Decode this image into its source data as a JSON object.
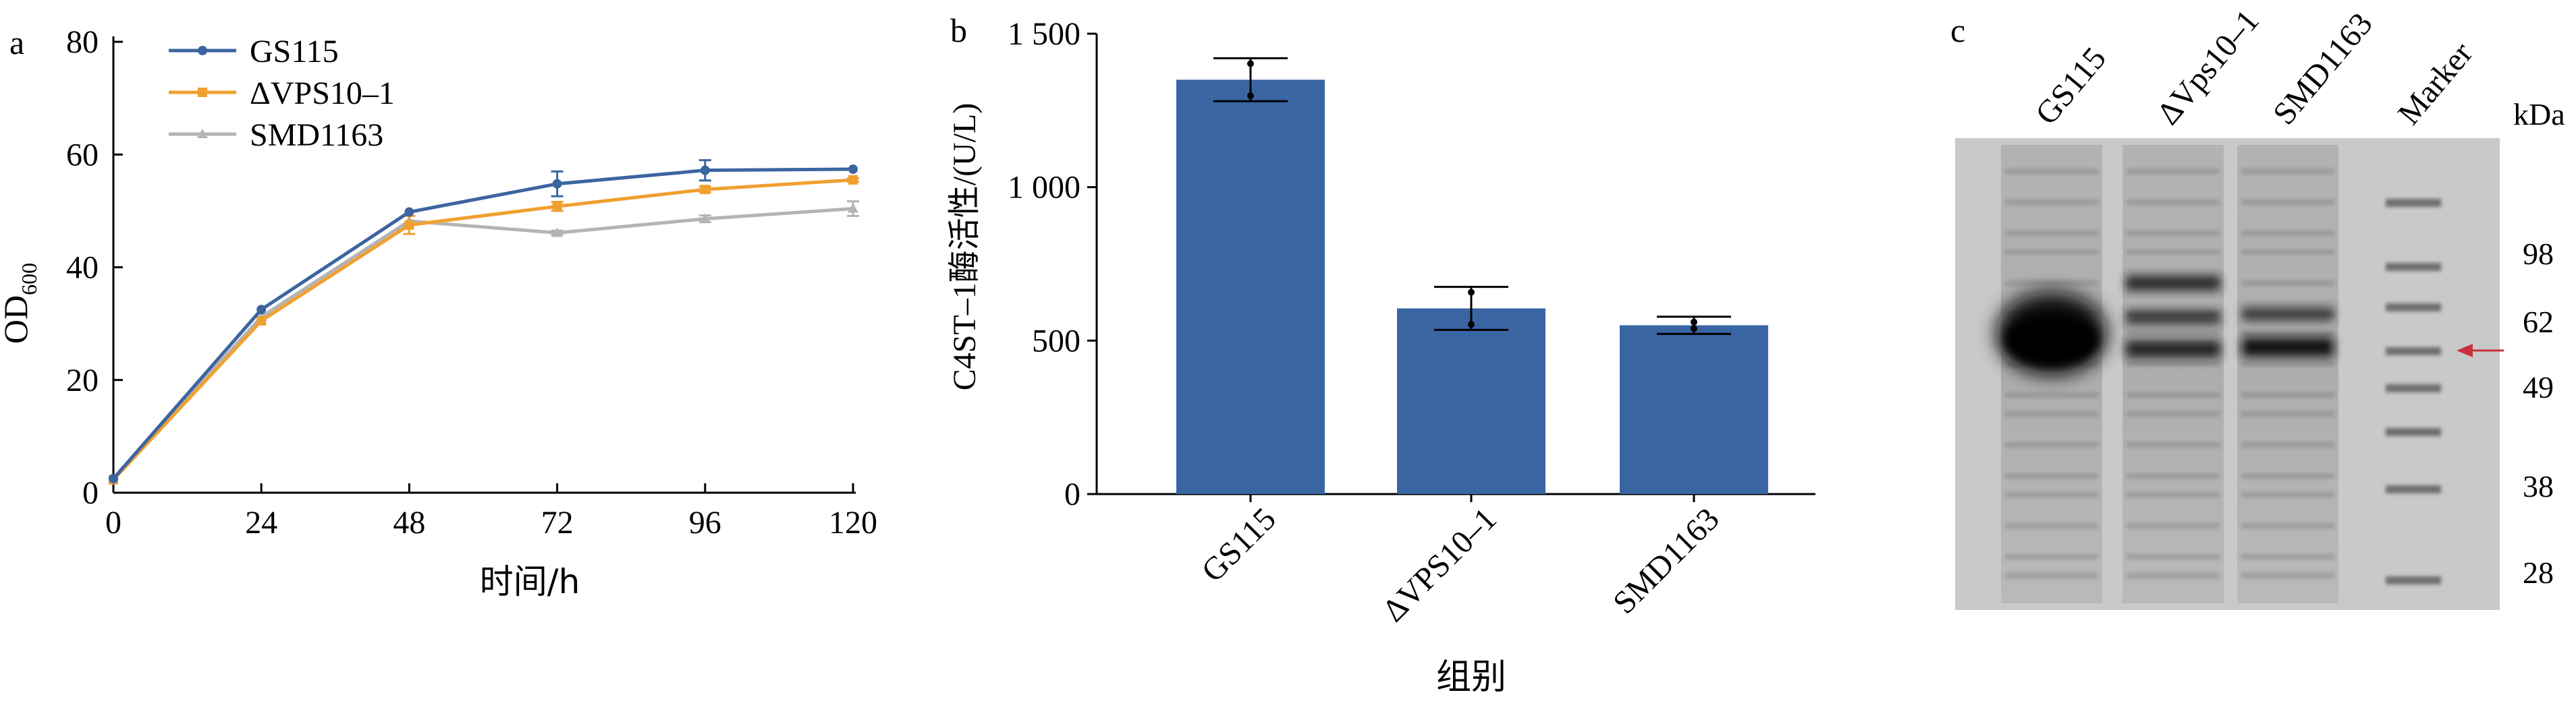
{
  "panel_a": {
    "letter": "a",
    "xlabel": "时间/h",
    "ylabel_main": "OD",
    "ylabel_sub": "600",
    "chart_data": {
      "type": "line",
      "x": [
        0,
        24,
        48,
        72,
        96,
        120
      ],
      "xlim": [
        0,
        120
      ],
      "ylim": [
        0,
        80
      ],
      "xticks": [
        "0",
        "24",
        "48",
        "72",
        "96",
        "120"
      ],
      "yticks": [
        "0",
        "20",
        "40",
        "60",
        "80"
      ],
      "series": [
        {
          "name": "GS115",
          "color": "#3c64a0",
          "marker": "circle",
          "values": [
            2.5,
            32.5,
            49.8,
            54.8,
            57.2,
            57.4
          ],
          "errors": [
            0,
            0,
            0,
            2.2,
            1.8,
            0
          ]
        },
        {
          "name": "ΔVPS10–1",
          "color": "#f0a030",
          "marker": "square",
          "values": [
            2.3,
            30.5,
            47.5,
            50.8,
            53.8,
            55.5
          ],
          "errors": [
            0,
            0,
            1.6,
            0.8,
            0.5,
            0.3
          ]
        },
        {
          "name": "SMD1163",
          "color": "#b4b4b4",
          "marker": "triangle",
          "values": [
            2.4,
            31.2,
            48.2,
            46.1,
            48.6,
            50.4
          ],
          "errors": [
            0,
            0,
            0,
            0.4,
            0.6,
            1.3
          ]
        }
      ]
    }
  },
  "panel_b": {
    "letter": "b",
    "xlabel": "组别",
    "ylabel": "C4ST–1酶活性/(U/L)",
    "chart_data": {
      "type": "bar",
      "categories": [
        "GS115",
        "ΔVPS10–1",
        "SMD1163"
      ],
      "values": [
        1350,
        605,
        550
      ],
      "errors": [
        70,
        70,
        28
      ],
      "ylim": [
        0,
        1500
      ],
      "yticks": [
        "0",
        "500",
        "1 000",
        "1 500"
      ],
      "color": "#3a65a3"
    }
  },
  "panel_c": {
    "letter": "c",
    "unit": "kDa",
    "lanes": [
      "GS115",
      "ΔVps10–1",
      "SMD1163",
      "Marker"
    ],
    "marker_sizes": [
      "98",
      "62",
      "49",
      "38",
      "28"
    ],
    "arrow_color": "#c8323c"
  }
}
